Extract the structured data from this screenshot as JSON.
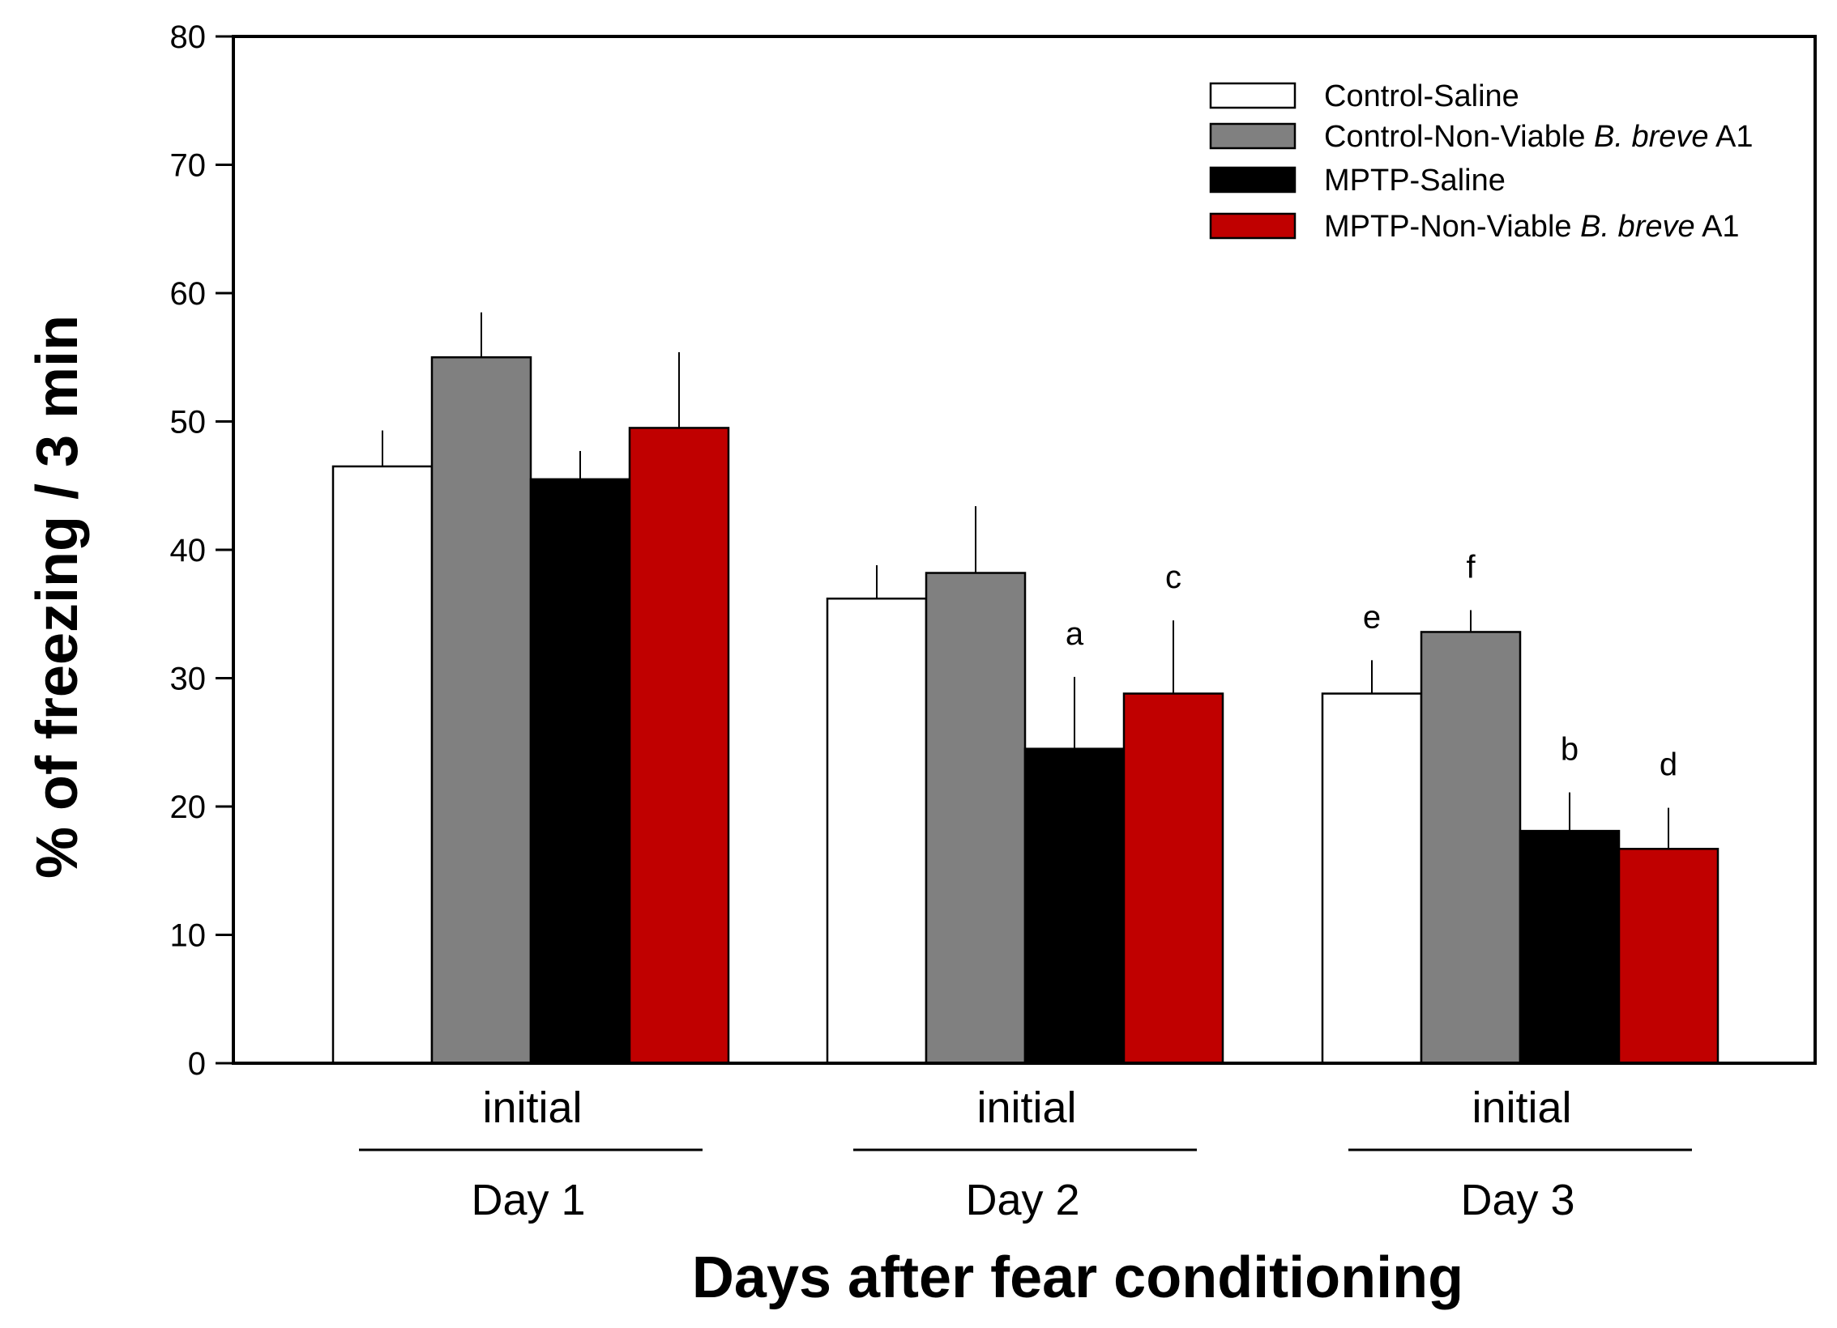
{
  "chart_data": {
    "type": "bar",
    "title": "",
    "ylabel": "% of freezing / 3 min",
    "xlabel": "Days after fear conditioning",
    "ylim": [
      0,
      80
    ],
    "yticks": [
      0,
      10,
      20,
      30,
      40,
      50,
      60,
      70,
      80
    ],
    "categories": [
      "Day 1",
      "Day 2",
      "Day 3"
    ],
    "sublabels": [
      "initial",
      "initial",
      "initial"
    ],
    "series": [
      {
        "name": "Control-Saline",
        "legend_parts": [
          "Control-Saline"
        ],
        "color": "#ffffff",
        "values": [
          46.5,
          36.2,
          28.8
        ],
        "errors": [
          2.8,
          2.6,
          2.6
        ],
        "sig": [
          "",
          "",
          "e"
        ]
      },
      {
        "name": "Control-Non-Viable B. breve A1",
        "legend_parts": [
          "Control-Non-Viable ",
          "B. breve",
          " A1"
        ],
        "color": "#808080",
        "values": [
          55.0,
          38.2,
          33.6
        ],
        "errors": [
          3.5,
          5.2,
          1.7
        ],
        "sig": [
          "",
          "",
          "f"
        ]
      },
      {
        "name": "MPTP-Saline",
        "legend_parts": [
          "MPTP-Saline"
        ],
        "color": "#000000",
        "values": [
          45.5,
          24.5,
          18.1
        ],
        "errors": [
          2.2,
          5.6,
          3.0
        ],
        "sig": [
          "",
          "a",
          "b"
        ]
      },
      {
        "name": "MPTP-Non-Viable B. breve A1",
        "legend_parts": [
          "MPTP-Non-Viable ",
          "B. breve",
          " A1"
        ],
        "color": "#c00000",
        "values": [
          49.5,
          28.8,
          16.7
        ],
        "errors": [
          5.9,
          5.7,
          3.2
        ],
        "sig": [
          "",
          "c",
          "d"
        ]
      }
    ],
    "legend_position": "top-right"
  }
}
